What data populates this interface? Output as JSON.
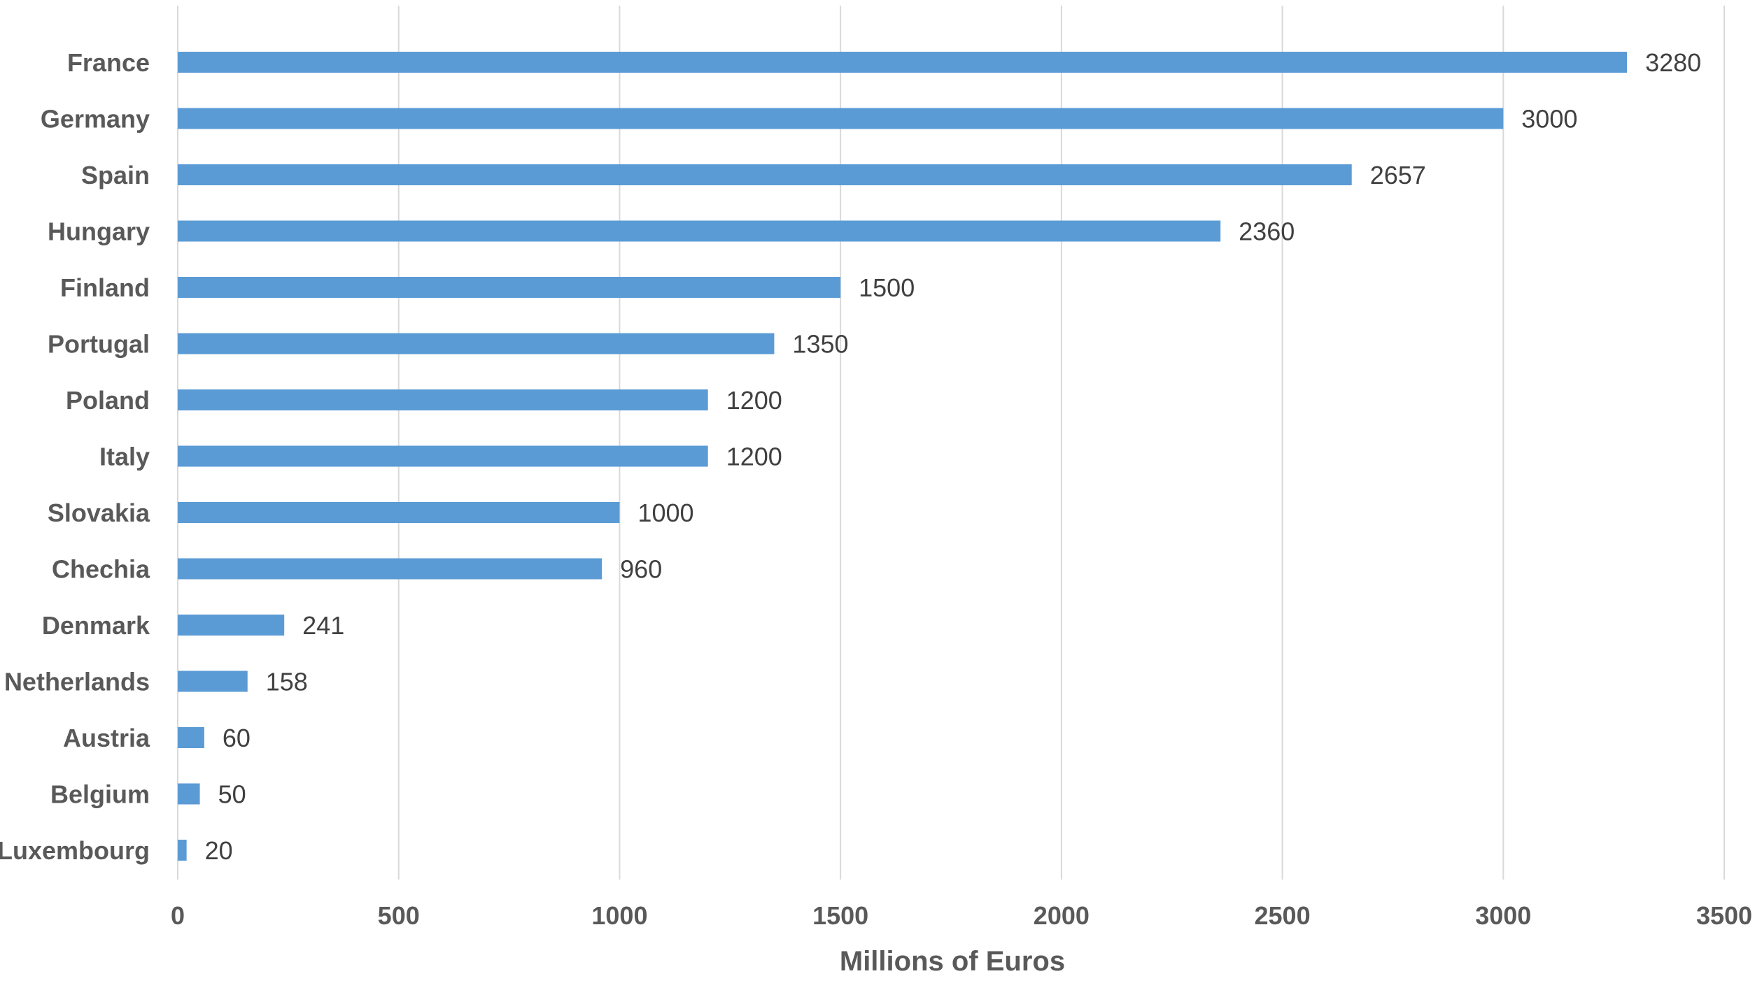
{
  "chart_data": {
    "type": "bar",
    "orientation": "horizontal",
    "categories": [
      "France",
      "Germany",
      "Spain",
      "Hungary",
      "Finland",
      "Portugal",
      "Poland",
      "Italy",
      "Slovakia",
      "Chechia",
      "Denmark",
      "Netherlands",
      "Austria",
      "Belgium",
      "Luxembourg"
    ],
    "values": [
      3280,
      3000,
      2657,
      2360,
      1500,
      1350,
      1200,
      1200,
      1000,
      960,
      241,
      158,
      60,
      50,
      20
    ],
    "xlabel": "Millions of Euros",
    "ylabel": "",
    "xlim": [
      0,
      3500
    ],
    "xticks": [
      0,
      500,
      1000,
      1500,
      2000,
      2500,
      3000,
      3500
    ],
    "grid": "vertical",
    "data_labels": true,
    "bar_color": "#5b9bd5"
  }
}
